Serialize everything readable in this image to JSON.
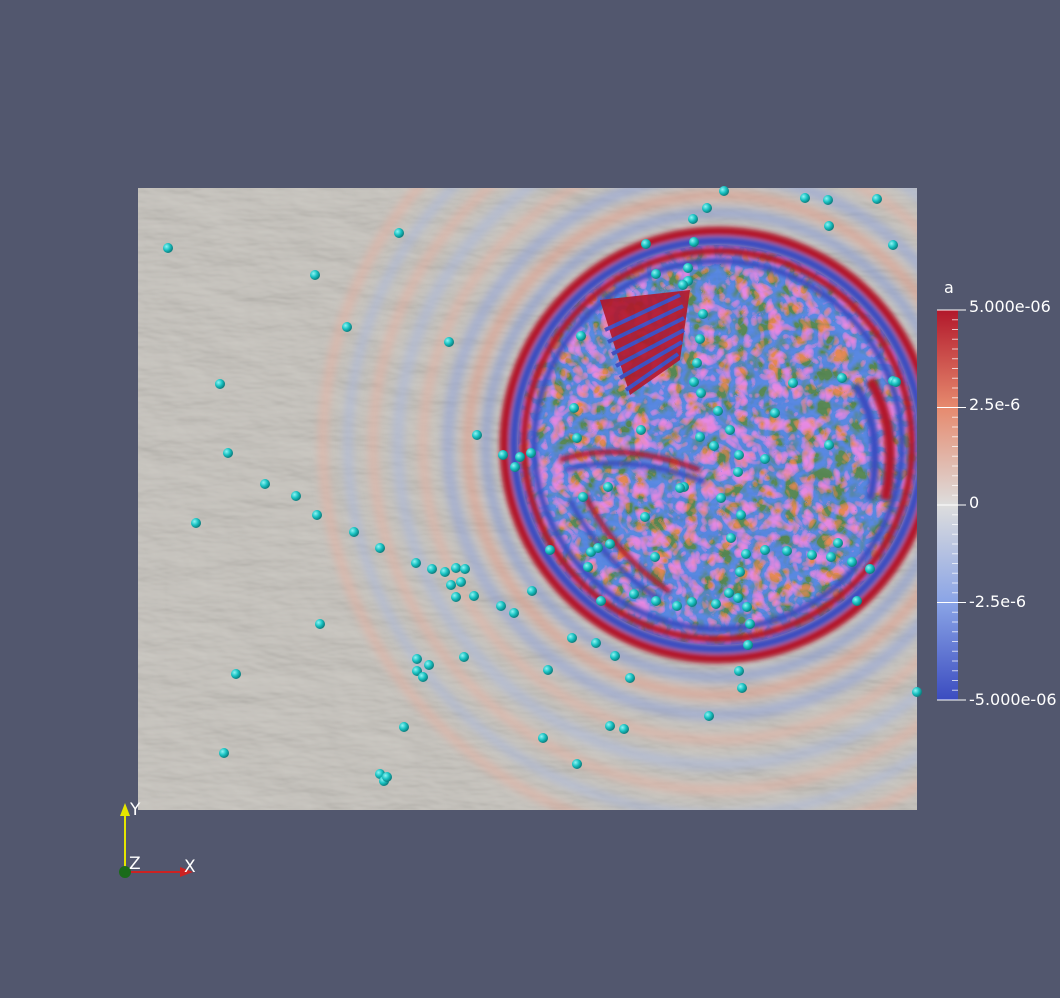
{
  "colorbar": {
    "title": "a",
    "max_label": "5.000e-06",
    "tick_labels": [
      "2.5e-6",
      "0",
      "-2.5e-6"
    ],
    "min_label": "-5.000e-06",
    "range": [
      -5e-06,
      5e-06
    ],
    "colors": {
      "high": "#b2182b",
      "mid": "#dddddd",
      "low": "#3b4cc0"
    }
  },
  "axes_triad": {
    "x_label": "X",
    "y_label": "Y",
    "z_label": "Z",
    "colors": {
      "x": "#cc2222",
      "y": "#e6e600",
      "z": "#1a6b1a"
    }
  },
  "scene": {
    "background_color": "#52576e",
    "terrain_color": "#c9c6c0",
    "station_color": "#19c2c2",
    "station_count": 150
  }
}
